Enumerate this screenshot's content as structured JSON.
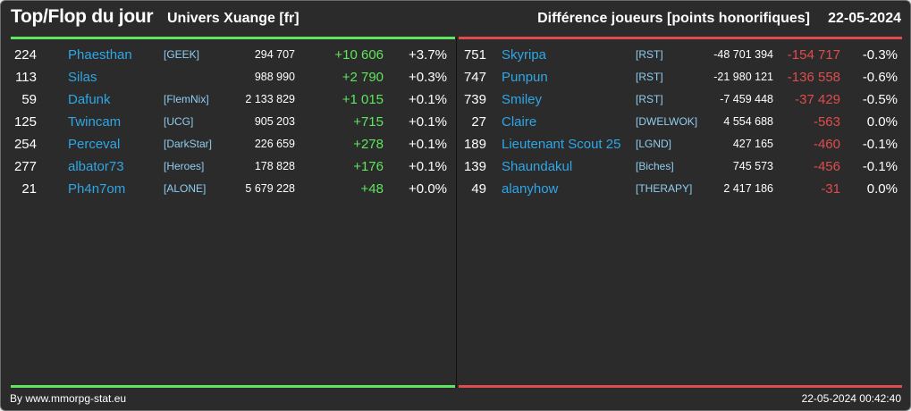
{
  "header": {
    "title": "Top/Flop du jour",
    "universe": "Univers Xuange [fr]",
    "metric": "Différence joueurs [points honorifiques]",
    "date": "22-05-2024"
  },
  "colors": {
    "positive": "#5ee65e",
    "negative": "#e04c4c",
    "name": "#2fa6e6"
  },
  "top": [
    {
      "rank": "224",
      "name": "Phaesthan",
      "ally": "[GEEK]",
      "points": "294 707",
      "diff": "+10 606",
      "pct": "+3.7%"
    },
    {
      "rank": "113",
      "name": "Silas",
      "ally": "",
      "points": "988 990",
      "diff": "+2 790",
      "pct": "+0.3%"
    },
    {
      "rank": "59",
      "name": "Dafunk",
      "ally": "[FlemNix]",
      "points": "2 133 829",
      "diff": "+1 015",
      "pct": "+0.1%"
    },
    {
      "rank": "125",
      "name": "Twincam",
      "ally": "[UCG]",
      "points": "905 203",
      "diff": "+715",
      "pct": "+0.1%"
    },
    {
      "rank": "254",
      "name": "Perceval",
      "ally": "[DarkStar]",
      "points": "226 659",
      "diff": "+278",
      "pct": "+0.1%"
    },
    {
      "rank": "277",
      "name": "albator73",
      "ally": "[Heroes]",
      "points": "178 828",
      "diff": "+176",
      "pct": "+0.1%"
    },
    {
      "rank": "21",
      "name": "Ph4n7om",
      "ally": "[ALONE]",
      "points": "5 679 228",
      "diff": "+48",
      "pct": "+0.0%"
    }
  ],
  "flop": [
    {
      "rank": "751",
      "name": "Skyripa",
      "ally": "[RST]",
      "points": "-48 701 394",
      "diff": "-154 717",
      "pct": "-0.3%"
    },
    {
      "rank": "747",
      "name": "Punpun",
      "ally": "[RST]",
      "points": "-21 980 121",
      "diff": "-136 558",
      "pct": "-0.6%"
    },
    {
      "rank": "739",
      "name": "Smiley",
      "ally": "[RST]",
      "points": "-7 459 448",
      "diff": "-37 429",
      "pct": "-0.5%"
    },
    {
      "rank": "27",
      "name": "Claire",
      "ally": "[DWELWOK]",
      "points": "4 554 688",
      "diff": "-563",
      "pct": "0.0%"
    },
    {
      "rank": "189",
      "name": "Lieutenant Scout 25",
      "ally": "[LGND]",
      "points": "427 165",
      "diff": "-460",
      "pct": "-0.1%"
    },
    {
      "rank": "139",
      "name": "Shaundakul",
      "ally": "[Biches]",
      "points": "745 573",
      "diff": "-456",
      "pct": "-0.1%"
    },
    {
      "rank": "49",
      "name": "alanyhow",
      "ally": "[THERAPY]",
      "points": "2 417 186",
      "diff": "-31",
      "pct": "0.0%"
    }
  ],
  "footer": {
    "credit": "By www.mmorpg-stat.eu",
    "timestamp": "22-05-2024 00:42:40"
  }
}
